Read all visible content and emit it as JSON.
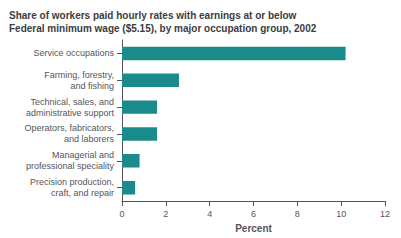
{
  "chart_data": {
    "type": "bar",
    "orientation": "horizontal",
    "title": "Share of workers paid hourly rates with earnings at or below\nFederal minimum wage ($5.15), by major occupation group, 2002",
    "categories": [
      "Service occupations",
      "Farming, forestry,\nand fishing",
      "Technical, sales, and\nadministrative support",
      "Operators, fabricators,\nand laborers",
      "Managerial and\nprofessional speciality",
      "Precision production,\ncraft, and repair"
    ],
    "values": [
      10.2,
      2.6,
      1.6,
      1.6,
      0.8,
      0.6
    ],
    "color": "#1a8a8a",
    "xlabel": "Percent",
    "xlim": [
      0,
      12
    ],
    "xticks": [
      0,
      2,
      4,
      6,
      8,
      10,
      12
    ],
    "grid": false
  }
}
